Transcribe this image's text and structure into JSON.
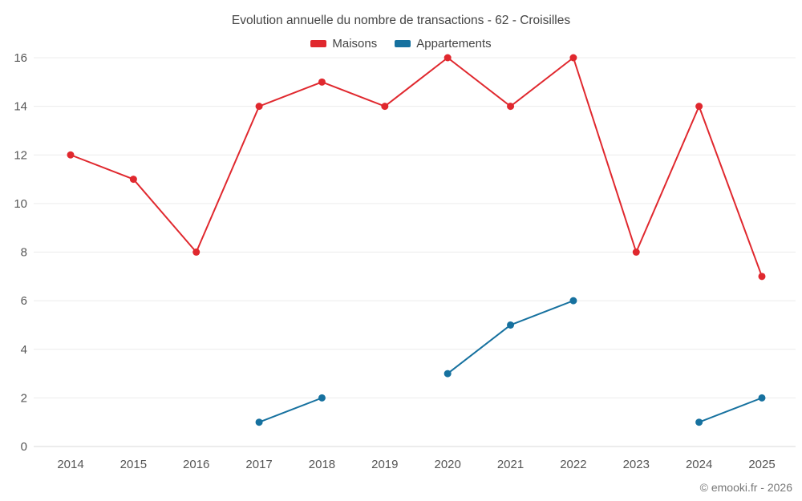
{
  "title": "Evolution annuelle du nombre de transactions - 62 - Croisilles",
  "footer": "© emooki.fr - 2026",
  "colors": {
    "maisons": "#e0282e",
    "appartements": "#16719f",
    "grid": "#ececec",
    "axis": "#d9d9d9",
    "tick_text": "#555555"
  },
  "chart_data": {
    "type": "line",
    "title": "Evolution annuelle du nombre de transactions - 62 - Croisilles",
    "categories": [
      2014,
      2015,
      2016,
      2017,
      2018,
      2019,
      2020,
      2021,
      2022,
      2023,
      2024,
      2025
    ],
    "series": [
      {
        "name": "Maisons",
        "color": "#e0282e",
        "values": [
          12,
          11,
          8,
          14,
          15,
          14,
          16,
          14,
          16,
          8,
          14,
          7
        ]
      },
      {
        "name": "Appartements",
        "color": "#16719f",
        "values": [
          null,
          null,
          null,
          1,
          2,
          null,
          3,
          5,
          6,
          null,
          1,
          2
        ]
      }
    ],
    "xlabel": "",
    "ylabel": "",
    "ylim": [
      0,
      16
    ],
    "yticks": [
      0,
      2,
      4,
      6,
      8,
      10,
      12,
      14,
      16
    ],
    "grid": true,
    "legend_position": "top"
  }
}
